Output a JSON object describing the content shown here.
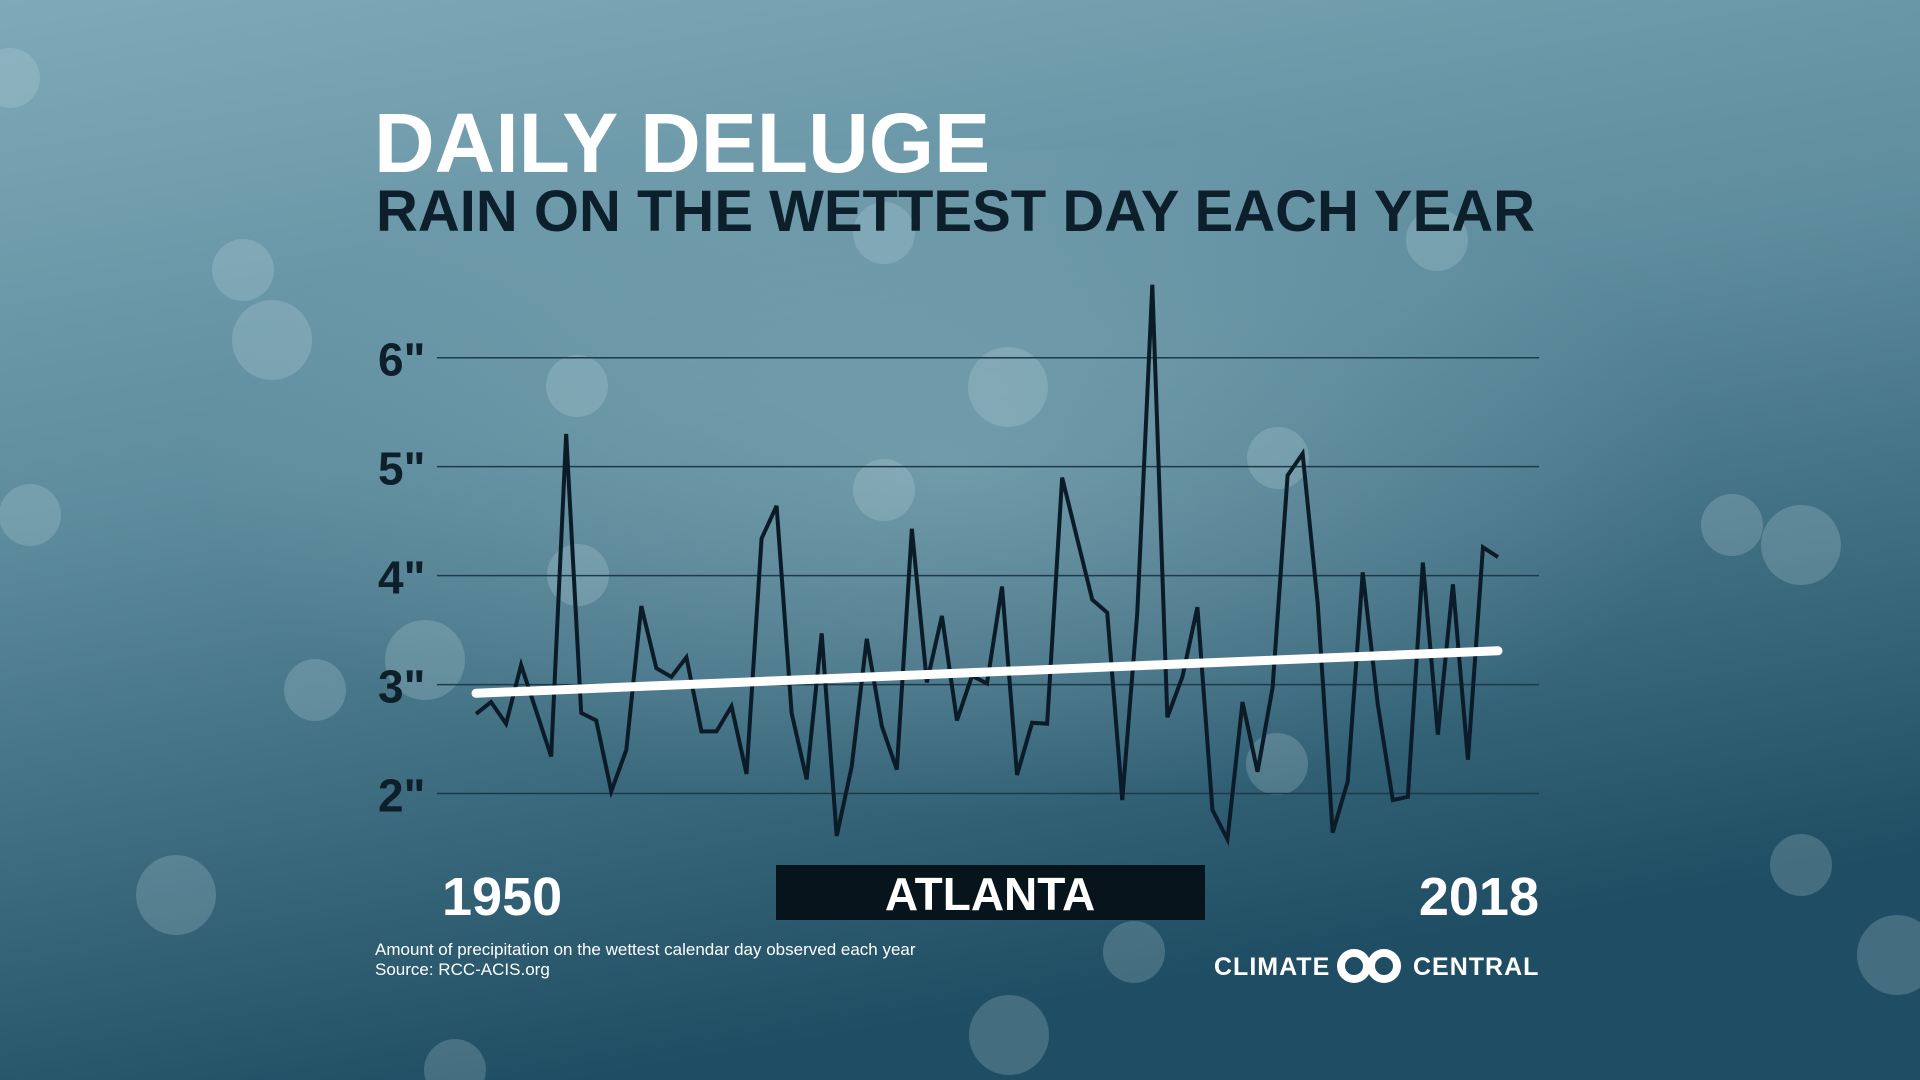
{
  "chart_data": {
    "type": "line",
    "title": "DAILY DELUGE",
    "subtitle": "RAIN ON THE WETTEST DAY EACH YEAR",
    "location": "ATLANTA",
    "x": [
      1950,
      1951,
      1952,
      1953,
      1954,
      1955,
      1956,
      1957,
      1958,
      1959,
      1960,
      1961,
      1962,
      1963,
      1964,
      1965,
      1966,
      1967,
      1968,
      1969,
      1970,
      1971,
      1972,
      1973,
      1974,
      1975,
      1976,
      1977,
      1978,
      1979,
      1980,
      1981,
      1982,
      1983,
      1984,
      1985,
      1986,
      1987,
      1988,
      1989,
      1990,
      1991,
      1992,
      1993,
      1994,
      1995,
      1996,
      1997,
      1998,
      1999,
      2000,
      2001,
      2002,
      2003,
      2004,
      2005,
      2006,
      2007,
      2008,
      2009,
      2010,
      2011,
      2012,
      2013,
      2014,
      2015,
      2016,
      2017,
      2018
    ],
    "series": [
      {
        "color": "#0b1c28",
        "values": [
          2.73,
          2.84,
          2.64,
          3.18,
          2.76,
          2.34,
          5.3,
          2.74,
          2.67,
          2.02,
          2.4,
          3.72,
          3.15,
          3.07,
          3.25,
          2.57,
          2.57,
          2.8,
          2.18,
          4.34,
          4.64,
          2.74,
          2.13,
          3.47,
          1.61,
          2.25,
          3.42,
          2.62,
          2.22,
          4.43,
          3.02,
          3.63,
          2.67,
          3.08,
          3.01,
          3.9,
          2.17,
          2.65,
          2.64,
          4.9,
          4.34,
          3.78,
          3.66,
          1.94,
          3.66,
          6.67,
          2.7,
          3.07,
          3.71,
          1.85,
          1.58,
          2.84,
          2.2,
          2.97,
          4.92,
          5.12,
          3.75,
          1.64,
          2.11,
          4.03,
          2.82,
          1.94,
          1.97,
          4.12,
          2.54,
          3.92,
          2.31,
          4.26,
          4.17
        ]
      }
    ],
    "trend": {
      "x": [
        1950,
        2018
      ],
      "values": [
        2.92,
        3.31
      ],
      "color": "#ffffff"
    },
    "xlim": [
      1950,
      2018
    ],
    "xticks": [
      1950,
      2018
    ],
    "ylim": [
      1.5,
      6.75
    ],
    "yticks": [
      {
        "value": 2,
        "label": "2\""
      },
      {
        "value": 3,
        "label": "3\""
      },
      {
        "value": 4,
        "label": "4\""
      },
      {
        "value": 5,
        "label": "5\""
      },
      {
        "value": 6,
        "label": "6\""
      }
    ],
    "grid": true,
    "footnote": [
      "Amount of precipitation on the wettest calendar day observed each year",
      "Source: RCC-ACIS.org"
    ],
    "logo": [
      "CLIMATE",
      "CENTRAL"
    ]
  }
}
